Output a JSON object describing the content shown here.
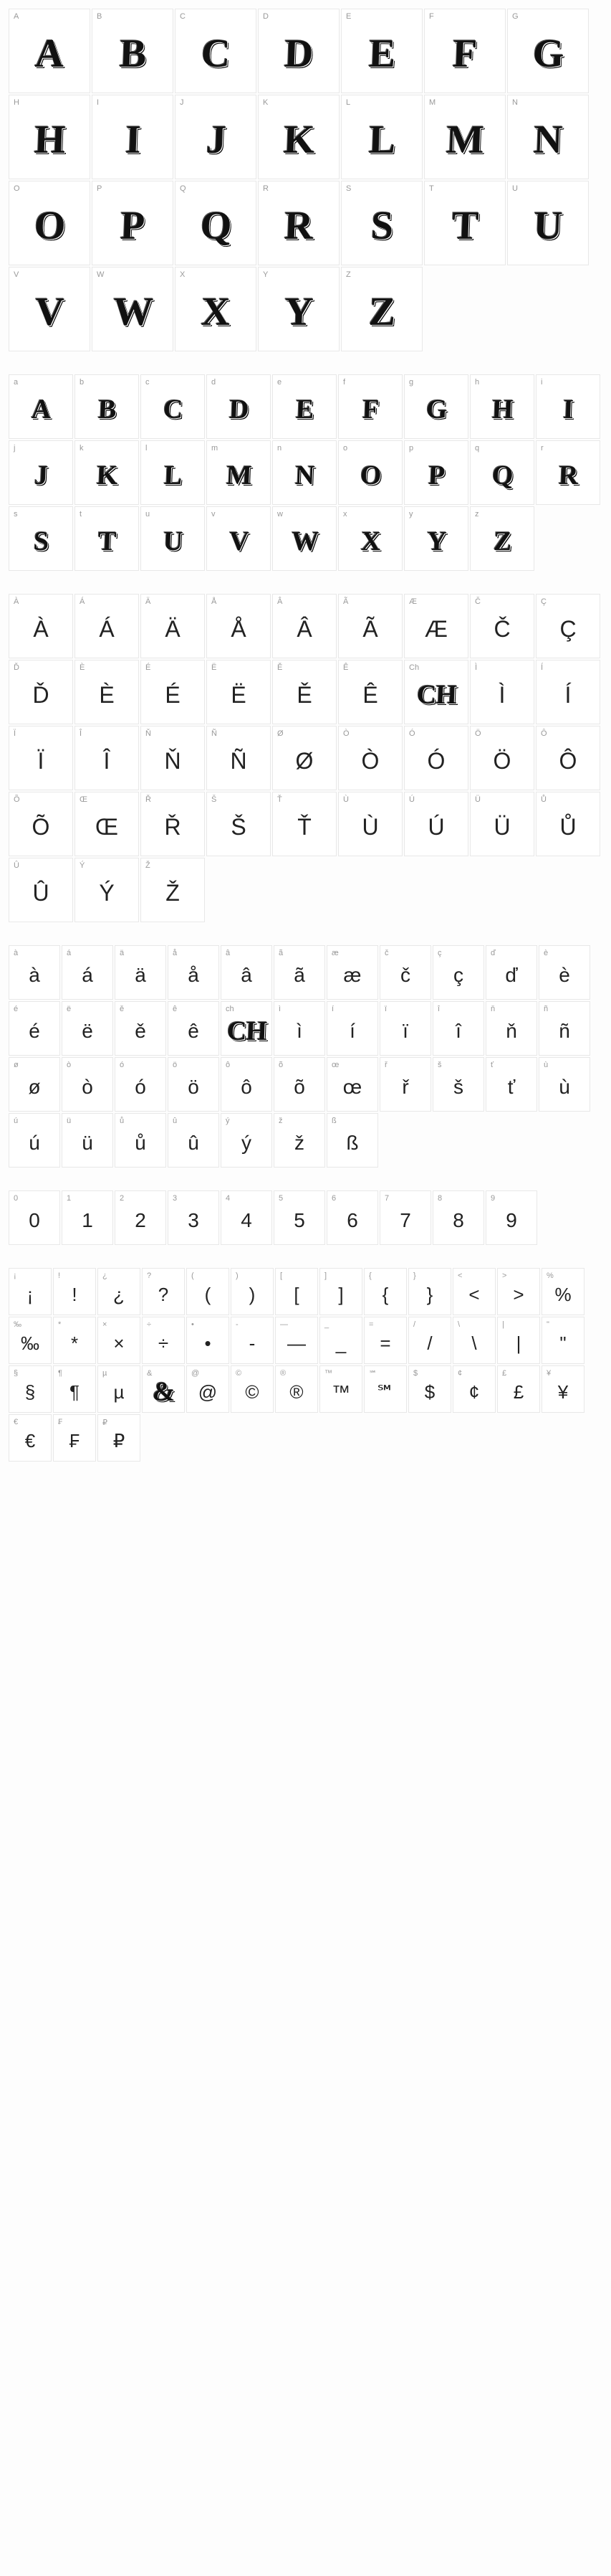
{
  "sections": [
    {
      "cellClass": "large",
      "glyphClass": "glyph-decorative lg",
      "cells": [
        {
          "label": "A",
          "glyph": "A"
        },
        {
          "label": "B",
          "glyph": "B"
        },
        {
          "label": "C",
          "glyph": "C"
        },
        {
          "label": "D",
          "glyph": "D"
        },
        {
          "label": "E",
          "glyph": "E"
        },
        {
          "label": "F",
          "glyph": "F"
        },
        {
          "label": "G",
          "glyph": "G"
        },
        {
          "label": "H",
          "glyph": "H"
        },
        {
          "label": "I",
          "glyph": "I"
        },
        {
          "label": "J",
          "glyph": "J"
        },
        {
          "label": "K",
          "glyph": "K"
        },
        {
          "label": "L",
          "glyph": "L"
        },
        {
          "label": "M",
          "glyph": "M"
        },
        {
          "label": "N",
          "glyph": "N"
        },
        {
          "label": "O",
          "glyph": "O"
        },
        {
          "label": "P",
          "glyph": "P"
        },
        {
          "label": "Q",
          "glyph": "Q"
        },
        {
          "label": "R",
          "glyph": "R"
        },
        {
          "label": "S",
          "glyph": "S"
        },
        {
          "label": "T",
          "glyph": "T"
        },
        {
          "label": "U",
          "glyph": "U"
        },
        {
          "label": "V",
          "glyph": "V"
        },
        {
          "label": "W",
          "glyph": "W"
        },
        {
          "label": "X",
          "glyph": "X"
        },
        {
          "label": "Y",
          "glyph": "Y"
        },
        {
          "label": "Z",
          "glyph": "Z"
        }
      ]
    },
    {
      "cellClass": "medium",
      "glyphClass": "glyph-decorative md",
      "cells": [
        {
          "label": "a",
          "glyph": "A"
        },
        {
          "label": "b",
          "glyph": "B"
        },
        {
          "label": "c",
          "glyph": "C"
        },
        {
          "label": "d",
          "glyph": "D"
        },
        {
          "label": "e",
          "glyph": "E"
        },
        {
          "label": "f",
          "glyph": "F"
        },
        {
          "label": "g",
          "glyph": "G"
        },
        {
          "label": "h",
          "glyph": "H"
        },
        {
          "label": "i",
          "glyph": "I"
        },
        {
          "label": "j",
          "glyph": "J"
        },
        {
          "label": "k",
          "glyph": "K"
        },
        {
          "label": "l",
          "glyph": "L"
        },
        {
          "label": "m",
          "glyph": "M"
        },
        {
          "label": "n",
          "glyph": "N"
        },
        {
          "label": "o",
          "glyph": "O"
        },
        {
          "label": "p",
          "glyph": "P"
        },
        {
          "label": "q",
          "glyph": "Q"
        },
        {
          "label": "r",
          "glyph": "R"
        },
        {
          "label": "s",
          "glyph": "S"
        },
        {
          "label": "t",
          "glyph": "T"
        },
        {
          "label": "u",
          "glyph": "U"
        },
        {
          "label": "v",
          "glyph": "V"
        },
        {
          "label": "w",
          "glyph": "W"
        },
        {
          "label": "x",
          "glyph": "X"
        },
        {
          "label": "y",
          "glyph": "Y"
        },
        {
          "label": "z",
          "glyph": "Z"
        }
      ]
    },
    {
      "cellClass": "medium",
      "glyphClass": "glyph-plain md",
      "cells": [
        {
          "label": "À",
          "glyph": "À"
        },
        {
          "label": "Á",
          "glyph": "Á"
        },
        {
          "label": "Ä",
          "glyph": "Ä"
        },
        {
          "label": "Å",
          "glyph": "Å"
        },
        {
          "label": "Â",
          "glyph": "Â"
        },
        {
          "label": "Ã",
          "glyph": "Ã"
        },
        {
          "label": "Æ",
          "glyph": "Æ"
        },
        {
          "label": "Č",
          "glyph": "Č"
        },
        {
          "label": "Ç",
          "glyph": "Ç"
        },
        {
          "label": "Ď",
          "glyph": "Ď"
        },
        {
          "label": "È",
          "glyph": "È"
        },
        {
          "label": "É",
          "glyph": "É"
        },
        {
          "label": "Ë",
          "glyph": "Ë"
        },
        {
          "label": "Ě",
          "glyph": "Ě"
        },
        {
          "label": "Ê",
          "glyph": "Ê"
        },
        {
          "label": "Ch",
          "glyph": "CH",
          "decorative": true
        },
        {
          "label": "Ì",
          "glyph": "Ì"
        },
        {
          "label": "Í",
          "glyph": "Í"
        },
        {
          "label": "Ï",
          "glyph": "Ï"
        },
        {
          "label": "Î",
          "glyph": "Î"
        },
        {
          "label": "Ň",
          "glyph": "Ň"
        },
        {
          "label": "Ñ",
          "glyph": "Ñ"
        },
        {
          "label": "Ø",
          "glyph": "Ø"
        },
        {
          "label": "Ò",
          "glyph": "Ò"
        },
        {
          "label": "Ó",
          "glyph": "Ó"
        },
        {
          "label": "Ö",
          "glyph": "Ö"
        },
        {
          "label": "Ô",
          "glyph": "Ô"
        },
        {
          "label": "Õ",
          "glyph": "Õ"
        },
        {
          "label": "Œ",
          "glyph": "Œ"
        },
        {
          "label": "Ř",
          "glyph": "Ř"
        },
        {
          "label": "Š",
          "glyph": "Š"
        },
        {
          "label": "Ť",
          "glyph": "Ť"
        },
        {
          "label": "Ù",
          "glyph": "Ù"
        },
        {
          "label": "Ú",
          "glyph": "Ú"
        },
        {
          "label": "Ü",
          "glyph": "Ü"
        },
        {
          "label": "Ů",
          "glyph": "Ů"
        },
        {
          "label": "Û",
          "glyph": "Û"
        },
        {
          "label": "Ý",
          "glyph": "Ý"
        },
        {
          "label": "Ž",
          "glyph": "Ž"
        }
      ]
    },
    {
      "cellClass": "small",
      "glyphClass": "glyph-plain sm",
      "cells": [
        {
          "label": "à",
          "glyph": "à"
        },
        {
          "label": "á",
          "glyph": "á"
        },
        {
          "label": "ä",
          "glyph": "ä"
        },
        {
          "label": "å",
          "glyph": "å"
        },
        {
          "label": "â",
          "glyph": "â"
        },
        {
          "label": "ã",
          "glyph": "ã"
        },
        {
          "label": "æ",
          "glyph": "æ"
        },
        {
          "label": "č",
          "glyph": "č"
        },
        {
          "label": "ç",
          "glyph": "ç"
        },
        {
          "label": "ď",
          "glyph": "ď"
        },
        {
          "label": "è",
          "glyph": "è"
        },
        {
          "label": "é",
          "glyph": "é"
        },
        {
          "label": "ë",
          "glyph": "ë"
        },
        {
          "label": "ě",
          "glyph": "ě"
        },
        {
          "label": "ê",
          "glyph": "ê"
        },
        {
          "label": "ch",
          "glyph": "CH",
          "decorative": true
        },
        {
          "label": "ì",
          "glyph": "ì"
        },
        {
          "label": "í",
          "glyph": "í"
        },
        {
          "label": "ï",
          "glyph": "ï"
        },
        {
          "label": "î",
          "glyph": "î"
        },
        {
          "label": "ň",
          "glyph": "ň"
        },
        {
          "label": "ñ",
          "glyph": "ñ"
        },
        {
          "label": "ø",
          "glyph": "ø"
        },
        {
          "label": "ò",
          "glyph": "ò"
        },
        {
          "label": "ó",
          "glyph": "ó"
        },
        {
          "label": "ö",
          "glyph": "ö"
        },
        {
          "label": "ô",
          "glyph": "ô"
        },
        {
          "label": "õ",
          "glyph": "õ"
        },
        {
          "label": "œ",
          "glyph": "œ"
        },
        {
          "label": "ř",
          "glyph": "ř"
        },
        {
          "label": "š",
          "glyph": "š"
        },
        {
          "label": "ť",
          "glyph": "ť"
        },
        {
          "label": "ù",
          "glyph": "ù"
        },
        {
          "label": "ú",
          "glyph": "ú"
        },
        {
          "label": "ü",
          "glyph": "ü"
        },
        {
          "label": "ů",
          "glyph": "ů"
        },
        {
          "label": "û",
          "glyph": "û"
        },
        {
          "label": "ý",
          "glyph": "ý"
        },
        {
          "label": "ž",
          "glyph": "ž"
        },
        {
          "label": "ß",
          "glyph": "ß"
        }
      ]
    },
    {
      "cellClass": "small",
      "glyphClass": "glyph-plain sm",
      "cells": [
        {
          "label": "0",
          "glyph": "0"
        },
        {
          "label": "1",
          "glyph": "1"
        },
        {
          "label": "2",
          "glyph": "2"
        },
        {
          "label": "3",
          "glyph": "3"
        },
        {
          "label": "4",
          "glyph": "4"
        },
        {
          "label": "5",
          "glyph": "5"
        },
        {
          "label": "6",
          "glyph": "6"
        },
        {
          "label": "7",
          "glyph": "7"
        },
        {
          "label": "8",
          "glyph": "8"
        },
        {
          "label": "9",
          "glyph": "9"
        }
      ]
    },
    {
      "cellClass": "xsmall",
      "glyphClass": "glyph-plain xs",
      "cells": [
        {
          "label": "¡",
          "glyph": "¡"
        },
        {
          "label": "!",
          "glyph": "!"
        },
        {
          "label": "¿",
          "glyph": "¿"
        },
        {
          "label": "?",
          "glyph": "?"
        },
        {
          "label": "(",
          "glyph": "("
        },
        {
          "label": ")",
          "glyph": ")"
        },
        {
          "label": "[",
          "glyph": "["
        },
        {
          "label": "]",
          "glyph": "]"
        },
        {
          "label": "{",
          "glyph": "{"
        },
        {
          "label": "}",
          "glyph": "}"
        },
        {
          "label": "<",
          "glyph": "<"
        },
        {
          "label": ">",
          "glyph": ">"
        },
        {
          "label": "%",
          "glyph": "%"
        },
        {
          "label": "‰",
          "glyph": "‰"
        },
        {
          "label": "*",
          "glyph": "*"
        },
        {
          "label": "×",
          "glyph": "×"
        },
        {
          "label": "÷",
          "glyph": "÷"
        },
        {
          "label": "•",
          "glyph": "•"
        },
        {
          "label": "-",
          "glyph": "-"
        },
        {
          "label": "—",
          "glyph": "—"
        },
        {
          "label": "_",
          "glyph": "_"
        },
        {
          "label": "=",
          "glyph": "="
        },
        {
          "label": "/",
          "glyph": "/"
        },
        {
          "label": "\\",
          "glyph": "\\"
        },
        {
          "label": "|",
          "glyph": "|"
        },
        {
          "label": "\"",
          "glyph": "\""
        },
        {
          "label": "§",
          "glyph": "§"
        },
        {
          "label": "¶",
          "glyph": "¶"
        },
        {
          "label": "µ",
          "glyph": "µ"
        },
        {
          "label": "&",
          "glyph": "&",
          "decorative": true
        },
        {
          "label": "@",
          "glyph": "@"
        },
        {
          "label": "©",
          "glyph": "©"
        },
        {
          "label": "®",
          "glyph": "®"
        },
        {
          "label": "™",
          "glyph": "™"
        },
        {
          "label": "℠",
          "glyph": "℠"
        },
        {
          "label": "$",
          "glyph": "$"
        },
        {
          "label": "¢",
          "glyph": "¢"
        },
        {
          "label": "£",
          "glyph": "£"
        },
        {
          "label": "¥",
          "glyph": "¥"
        },
        {
          "label": "€",
          "glyph": "€"
        },
        {
          "label": "₣",
          "glyph": "₣"
        },
        {
          "label": "₽",
          "glyph": "₽"
        }
      ]
    }
  ],
  "colors": {
    "background": "#fdfdfd",
    "cell_bg": "#ffffff",
    "cell_border": "#e8e8e8",
    "label_color": "#999999",
    "glyph_color": "#111111"
  }
}
